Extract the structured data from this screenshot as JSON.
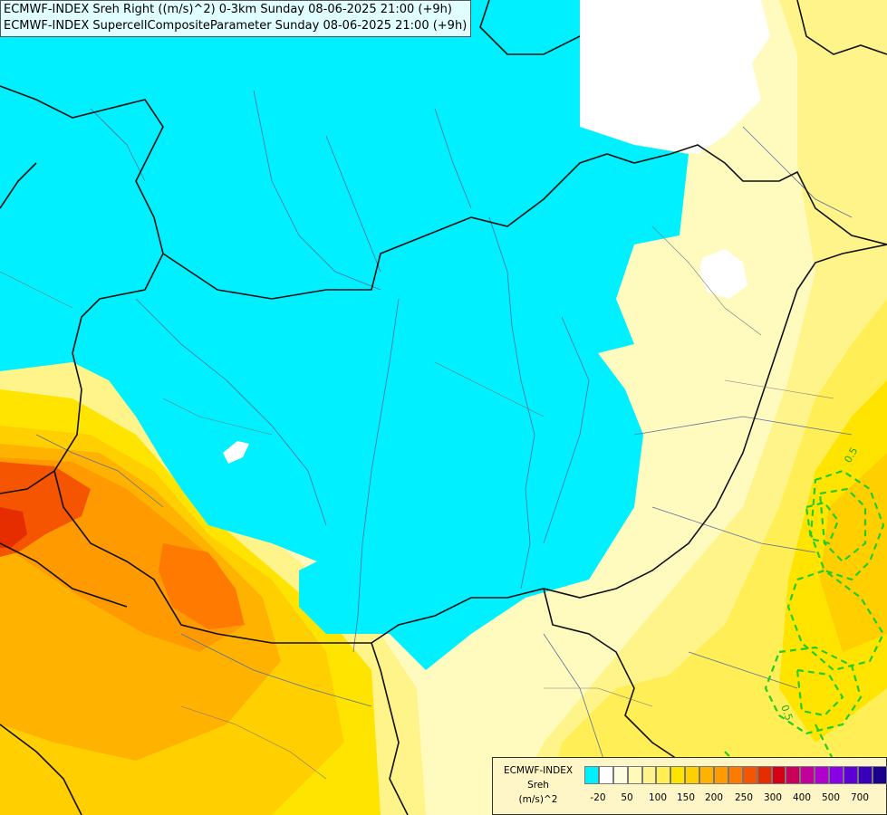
{
  "title": {
    "line1": "ECMWF-INDEX Sreh Right ((m/s)^2) 0-3km Sunday 08-06-2025 21:00 (+9h)",
    "line2": "ECMWF-INDEX SupercellCompositeParameter Sunday 08-06-2025 21:00 (+9h)"
  },
  "legend": {
    "source": "ECMWF-INDEX",
    "variable": "Sreh",
    "unit": "(m/s)^2",
    "colors": [
      "#00f0ff",
      "#ffffff",
      "#fffde0",
      "#fffab8",
      "#fff48a",
      "#ffee55",
      "#ffe400",
      "#ffcf00",
      "#ffb300",
      "#ff9a00",
      "#ff7a00",
      "#f55500",
      "#e52d00",
      "#d40018",
      "#c8005a",
      "#c4009a",
      "#b000cc",
      "#8a00e6",
      "#5c00d6",
      "#3a00b8",
      "#1a008a"
    ],
    "ticks": [
      "-20",
      "50",
      "100",
      "150",
      "200",
      "250",
      "300",
      "400",
      "500",
      "700"
    ]
  },
  "contour_labels": {
    "scp_value": "0.5"
  }
}
